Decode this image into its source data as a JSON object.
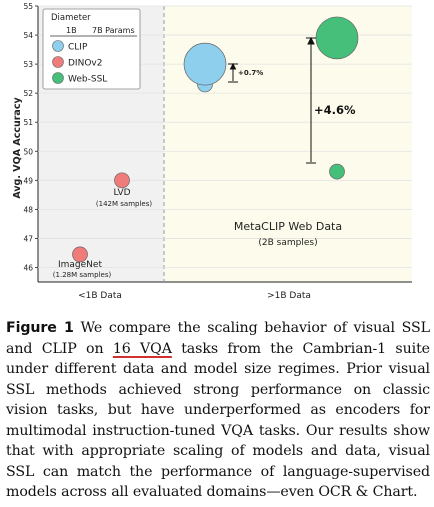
{
  "chart_data": {
    "type": "scatter",
    "ylabel": "Avg. VQA Accuracy",
    "ylim": [
      45.5,
      55
    ],
    "yticks": [
      "55",
      "54",
      "53",
      "52",
      "51",
      "50",
      "49",
      "48",
      "47",
      "46"
    ],
    "xcategories": [
      "<1B Data",
      ">1B Data"
    ],
    "legend": {
      "title": "Diameter",
      "size_labels": [
        "1B",
        "7B Params"
      ],
      "entries": [
        {
          "name": "CLIP",
          "color": "#8ecfee"
        },
        {
          "name": "DINOv2",
          "color": "#f07b7b"
        },
        {
          "name": "Web-SSL",
          "color": "#45bf7a"
        }
      ],
      "placement": "top-left"
    },
    "series": [
      {
        "name": "CLIP",
        "color": "#8ecfee",
        "points": [
          {
            "region": ">1B Data",
            "y": 52.3,
            "params_b": 1
          },
          {
            "region": ">1B Data",
            "y": 53.0,
            "params_b": 7
          }
        ]
      },
      {
        "name": "DINOv2",
        "color": "#f07b7b",
        "points": [
          {
            "region": "<1B Data",
            "y": 46.45,
            "params_b": 1
          },
          {
            "region": "<1B Data",
            "y": 49.0,
            "params_b": 1
          }
        ]
      },
      {
        "name": "Web-SSL",
        "color": "#45bf7a",
        "points": [
          {
            "region": ">1B Data",
            "y": 49.3,
            "params_b": 1
          },
          {
            "region": ">1B Data",
            "y": 53.9,
            "params_b": 7
          }
        ]
      }
    ],
    "annotations": {
      "small_gain": "+0.7%",
      "big_gain": "+4.6%",
      "lvd_label": "LVD",
      "lvd_sub": "(142M samples)",
      "imagenet_label": "ImageNet",
      "imagenet_sub": "(1.28M samples)",
      "metaclip_label": "MetaCLIP Web Data",
      "metaclip_sub": "(2B samples)"
    }
  },
  "caption": {
    "label": "Figure 1",
    "before": "We compare the scaling behavior of visual SSL and CLIP on",
    "highlight": "16 VQA",
    "after": "tasks from the Cambrian-1 suite under different data and model size regimes. Prior visual SSL methods achieved strong performance on classic vision tasks, but have underperformed as encoders for multimodal instruction-tuned VQA tasks. Our results show that with appropriate scaling of models and data, visual SSL can match the performance of language-supervised models across all evaluated domains—even OCR & Chart."
  }
}
